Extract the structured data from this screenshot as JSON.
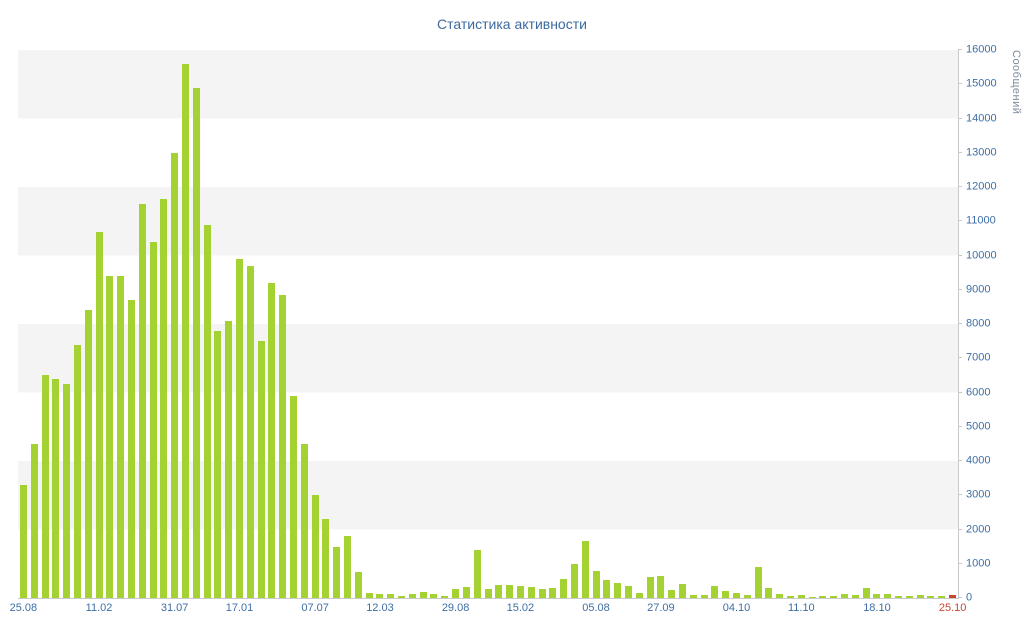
{
  "chart_data": {
    "type": "bar",
    "title": "Статистика активности",
    "xlabel": "",
    "ylabel": "Сообщений",
    "ylim": [
      0,
      16000
    ],
    "y_tick_step": 1000,
    "grid": "horizontal-bands",
    "legend": "none",
    "values": [
      3300,
      4500,
      6500,
      6400,
      6250,
      7400,
      8400,
      10700,
      9400,
      9400,
      8700,
      11500,
      10400,
      11650,
      13000,
      15600,
      14900,
      10900,
      7800,
      8100,
      9900,
      9700,
      7500,
      9200,
      8850,
      5900,
      4500,
      3000,
      2300,
      1500,
      1800,
      750,
      150,
      120,
      120,
      60,
      120,
      180,
      120,
      60,
      260,
      320,
      1400,
      260,
      380,
      380,
      350,
      320,
      260,
      290,
      550,
      1000,
      1650,
      800,
      520,
      440,
      350,
      150,
      600,
      650,
      230,
      400,
      90,
      100,
      350,
      200,
      150,
      90,
      900,
      290,
      120,
      60,
      90,
      30,
      60,
      60,
      120,
      90,
      300,
      120,
      120,
      60,
      60,
      90,
      60,
      60,
      100
    ],
    "highlight_last_bar": true,
    "x_tick_labels": [
      {
        "index": 0,
        "label": "25.08",
        "highlighted": false
      },
      {
        "index": 7,
        "label": "11.02",
        "highlighted": false
      },
      {
        "index": 14,
        "label": "31.07",
        "highlighted": false
      },
      {
        "index": 20,
        "label": "17.01",
        "highlighted": false
      },
      {
        "index": 27,
        "label": "07.07",
        "highlighted": false
      },
      {
        "index": 33,
        "label": "12.03",
        "highlighted": false
      },
      {
        "index": 40,
        "label": "29.08",
        "highlighted": false
      },
      {
        "index": 46,
        "label": "15.02",
        "highlighted": false
      },
      {
        "index": 53,
        "label": "05.08",
        "highlighted": false
      },
      {
        "index": 59,
        "label": "27.09",
        "highlighted": false
      },
      {
        "index": 66,
        "label": "04.10",
        "highlighted": false
      },
      {
        "index": 72,
        "label": "11.10",
        "highlighted": false
      },
      {
        "index": 79,
        "label": "18.10",
        "highlighted": false
      },
      {
        "index": 86,
        "label": "25.10",
        "highlighted": true
      }
    ],
    "colors": {
      "bar": "#a4d233",
      "highlight": "#c74634",
      "title_text": "#3d6a9e",
      "axis_text": "#3e6ea6",
      "ylabel_text": "#7d8b9c",
      "axis_line": "#c9c9c9"
    }
  }
}
